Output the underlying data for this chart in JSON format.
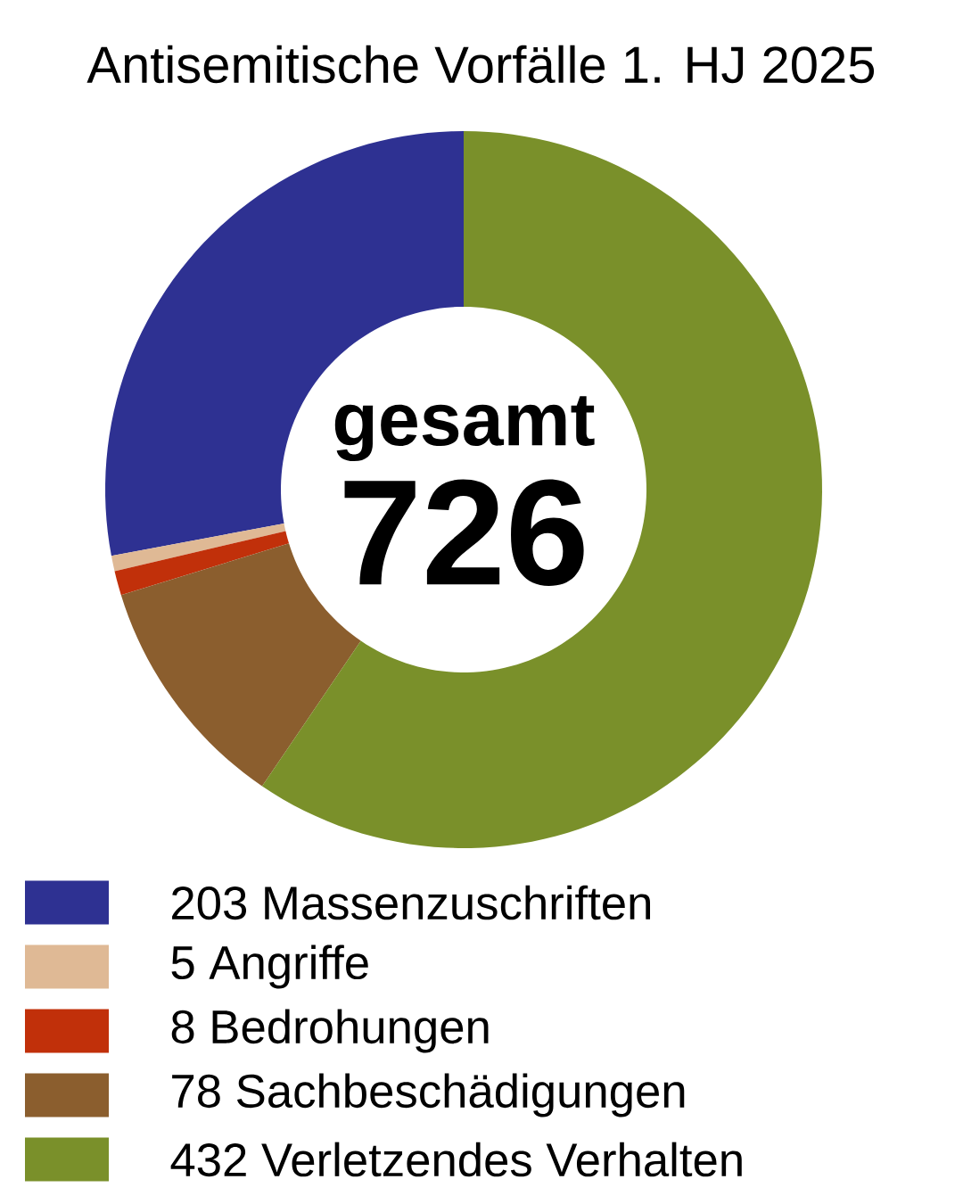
{
  "chart_data": {
    "type": "donut",
    "title": "Antisemitische Vorfälle 1. HJ 2025",
    "categories": [
      "203 Massenzuschriften",
      "5 Angriffe",
      "8 Bedrohungen",
      "78 Sachbeschädigungen",
      "432 Verletzendes Verhalten"
    ],
    "values": [
      203,
      5,
      8,
      78,
      432
    ],
    "colors": [
      "#2e3192",
      "#dfb995",
      "#c1300a",
      "#8b5e2e",
      "#7a902a"
    ],
    "annotations": [
      "gesamt",
      "726"
    ],
    "legend": "bottom"
  }
}
